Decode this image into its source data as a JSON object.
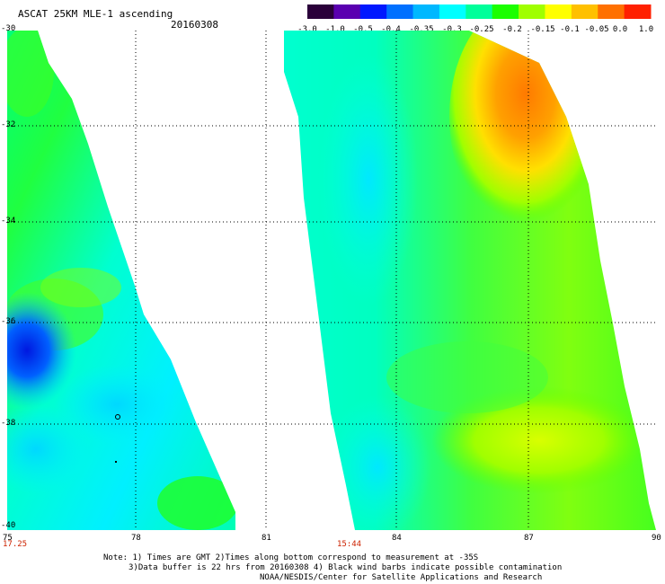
{
  "header": {
    "title": "ASCAT 25KM MLE-1 ascending",
    "date": "20160308"
  },
  "colorbar": {
    "labels": [
      "-3.0",
      "-1.0",
      "-0.5",
      "-0.4",
      "-0.35",
      "-0.3",
      "-0.25",
      "-0.2",
      "-0.15",
      "-0.1",
      "-0.05",
      "0.0",
      "1.0"
    ],
    "colors": [
      "#2a003a",
      "#5a00b0",
      "#0018ff",
      "#0070ff",
      "#00b8ff",
      "#00ffff",
      "#00ff9a",
      "#1bff00",
      "#a0ff00",
      "#ffff00",
      "#ffc000",
      "#ff7000",
      "#ff2000"
    ]
  },
  "map": {
    "lat_labels": [
      "-30",
      "-32",
      "-34",
      "-36",
      "-38",
      "-40"
    ],
    "lon_labels": [
      "75",
      "78",
      "81",
      "84",
      "87",
      "90"
    ],
    "time_left": "17.25",
    "time_right": "15:44"
  },
  "notes": {
    "line1": "Note: 1) Times are GMT 2)Times along bottom correspond to measurement at -35S",
    "line2": "3)Data buffer is 22 hrs from 20160308 4) Black wind barbs indicate possible contamination",
    "line3": "NOAA/NESDIS/Center for Satellite Applications and Research"
  }
}
